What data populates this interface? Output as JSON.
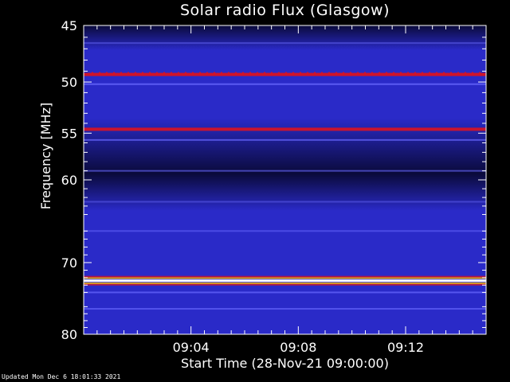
{
  "header": {
    "title": "Solar radio Flux (Glasgow)"
  },
  "footer": {
    "updated": "Updated Mon Dec  6 18:01:33 2021"
  },
  "colors": {
    "background": "#000000",
    "low": "#0a0a3a",
    "mid": "#2a2ac8",
    "high": "#d0142a",
    "peak": "#ffffff"
  },
  "chart_data": {
    "type": "heatmap",
    "title": "Solar radio Flux (Glasgow)",
    "xlabel": "Start Time (28-Nov-21 09:00:00)",
    "ylabel": "Frequency [MHz]",
    "x_unit": "minutes after 09:00:00",
    "xlim": [
      0,
      15
    ],
    "ylim_top_to_bottom": [
      45,
      80
    ],
    "y_scale": "log",
    "x_ticks": [
      {
        "value": 4,
        "label": "09:04"
      },
      {
        "value": 8,
        "label": "09:08"
      },
      {
        "value": 12,
        "label": "09:12"
      }
    ],
    "y_ticks": [
      {
        "value": 45,
        "label": "45"
      },
      {
        "value": 50,
        "label": "50"
      },
      {
        "value": 55,
        "label": "55"
      },
      {
        "value": 60,
        "label": "60"
      },
      {
        "value": 70,
        "label": "70"
      },
      {
        "value": 80,
        "label": "80"
      }
    ],
    "emission_bands": [
      {
        "freq": 46.5,
        "level": 0.12
      },
      {
        "freq": 49.3,
        "level": 0.72
      },
      {
        "freq": 50.2,
        "level": 0.42
      },
      {
        "freq": 54.6,
        "level": 0.62
      },
      {
        "freq": 55.7,
        "level": 0.35
      },
      {
        "freq": 59.0,
        "level": 0.25
      },
      {
        "freq": 62.5,
        "level": 0.1
      },
      {
        "freq": 66.0,
        "level": 0.18
      },
      {
        "freq": 72.4,
        "level": 1.0
      },
      {
        "freq": 74.0,
        "level": 0.35
      },
      {
        "freq": 76.3,
        "level": 0.3
      }
    ]
  }
}
